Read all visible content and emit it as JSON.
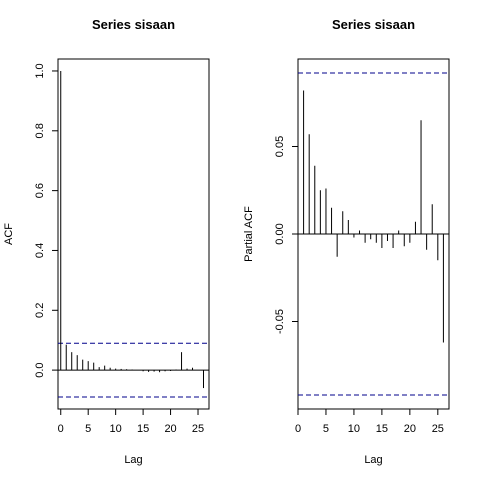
{
  "chart_data": [
    {
      "type": "bar",
      "title": "Series  sisaan",
      "xlabel": "Lag",
      "ylabel": "ACF",
      "xlim": [
        -0.5,
        27
      ],
      "ylim": [
        -0.13,
        1.04
      ],
      "x_ticks": [
        0,
        5,
        10,
        15,
        20,
        25
      ],
      "y_ticks": [
        0.0,
        0.2,
        0.4,
        0.6,
        0.8,
        1.0
      ],
      "y_tick_labels": [
        "0.0",
        "0.2",
        "0.4",
        "0.6",
        "0.8",
        "1.0"
      ],
      "confidence_bound": 0.09,
      "bound_color": "#00008b",
      "lags": [
        0,
        1,
        2,
        3,
        4,
        5,
        6,
        7,
        8,
        9,
        10,
        11,
        12,
        13,
        14,
        15,
        16,
        17,
        18,
        19,
        20,
        21,
        22,
        23,
        24,
        25,
        26
      ],
      "values": [
        1.0,
        0.085,
        0.06,
        0.05,
        0.035,
        0.03,
        0.025,
        0.01,
        0.015,
        0.008,
        0.005,
        0.004,
        0.003,
        0.002,
        0.0,
        -0.004,
        -0.006,
        -0.005,
        -0.007,
        -0.004,
        -0.003,
        0.002,
        0.06,
        0.005,
        0.008,
        0.0,
        -0.06
      ],
      "grid": false,
      "legend": false
    },
    {
      "type": "bar",
      "title": "Series  sisaan",
      "xlabel": "Lag",
      "ylabel": "Partial ACF",
      "xlim": [
        0,
        27
      ],
      "ylim": [
        -0.1,
        0.1
      ],
      "x_ticks": [
        0,
        5,
        10,
        15,
        20,
        25
      ],
      "y_ticks": [
        -0.05,
        0.0,
        0.05
      ],
      "y_tick_labels": [
        "-0.05",
        "0.00",
        "0.05"
      ],
      "confidence_bound": 0.092,
      "bound_color": "#00008b",
      "lags": [
        1,
        2,
        3,
        4,
        5,
        6,
        7,
        8,
        9,
        10,
        11,
        12,
        13,
        14,
        15,
        16,
        17,
        18,
        19,
        20,
        21,
        22,
        23,
        24,
        25,
        26
      ],
      "values": [
        0.082,
        0.057,
        0.039,
        0.025,
        0.026,
        0.015,
        -0.013,
        0.013,
        0.008,
        -0.002,
        0.002,
        -0.005,
        -0.003,
        -0.005,
        -0.008,
        -0.004,
        -0.008,
        0.002,
        -0.007,
        -0.005,
        0.007,
        0.065,
        -0.009,
        0.017,
        -0.015,
        -0.062
      ],
      "grid": false,
      "legend": false
    }
  ]
}
